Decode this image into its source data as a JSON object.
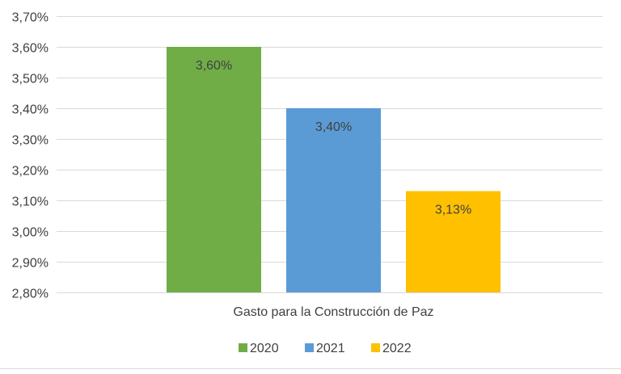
{
  "chart_data": {
    "type": "bar",
    "title": "",
    "xlabel": "",
    "ylabel": "",
    "categories": [
      "Gasto para la Construcción de Paz"
    ],
    "series": [
      {
        "name": "2020",
        "values": [
          3.6
        ],
        "color": "#70ad47",
        "label": "3,60%"
      },
      {
        "name": "2021",
        "values": [
          3.4
        ],
        "color": "#5b9bd5",
        "label": "3,40%"
      },
      {
        "name": "2022",
        "values": [
          3.13
        ],
        "color": "#ffc000",
        "label": "3,13%"
      }
    ],
    "ylim": [
      2.8,
      3.7
    ],
    "yticks": [
      2.8,
      2.9,
      3.0,
      3.1,
      3.2,
      3.3,
      3.4,
      3.5,
      3.6,
      3.7
    ],
    "ytick_labels": [
      "2,80%",
      "2,90%",
      "3,00%",
      "3,10%",
      "3,20%",
      "3,30%",
      "3,40%",
      "3,50%",
      "3,60%",
      "3,70%"
    ],
    "grid": true,
    "legend_position": "bottom",
    "gridline_color": "#d9d9d9"
  }
}
